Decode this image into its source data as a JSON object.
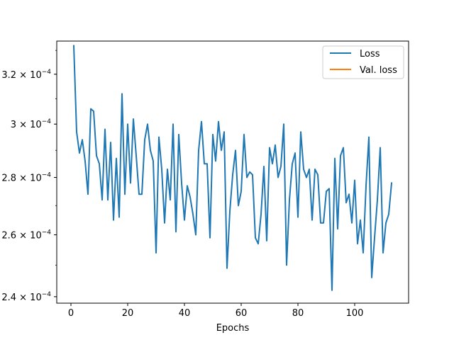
{
  "chart_data": {
    "type": "line",
    "title": "",
    "xlabel": "Epochs",
    "ylabel": "",
    "xlim": [
      -5,
      119
    ],
    "ylim": [
      0.000238,
      0.000334
    ],
    "y_scale": "log",
    "grid": false,
    "legend_position": "top-right",
    "x_ticks": [
      0,
      20,
      40,
      60,
      80,
      100
    ],
    "x_tick_labels": [
      "0",
      "20",
      "40",
      "60",
      "80",
      "100"
    ],
    "y_ticks": [
      0.00024,
      0.00026,
      0.00028,
      0.0003,
      0.00032
    ],
    "y_tick_labels": [
      {
        "mantissa": "2.4",
        "base": "10",
        "exp": "−4"
      },
      {
        "mantissa": "2.6",
        "base": "10",
        "exp": "−4"
      },
      {
        "mantissa": "2.8",
        "base": "10",
        "exp": "−4"
      },
      {
        "mantissa": "3",
        "base": "10",
        "exp": "−4"
      },
      {
        "mantissa": "3.2",
        "base": "10",
        "exp": "−4"
      }
    ],
    "series": [
      {
        "name": "Loss",
        "color": "#1f77b4",
        "x": [
          1,
          2,
          3,
          4,
          5,
          6,
          7,
          8,
          9,
          10,
          11,
          12,
          13,
          14,
          15,
          16,
          17,
          18,
          19,
          20,
          21,
          22,
          23,
          24,
          25,
          26,
          27,
          28,
          29,
          30,
          31,
          32,
          33,
          34,
          35,
          36,
          37,
          38,
          39,
          40,
          41,
          42,
          43,
          44,
          45,
          46,
          47,
          48,
          49,
          50,
          51,
          52,
          53,
          54,
          55,
          56,
          57,
          58,
          59,
          60,
          61,
          62,
          63,
          64,
          65,
          66,
          67,
          68,
          69,
          70,
          71,
          72,
          73,
          74,
          75,
          76,
          77,
          78,
          79,
          80,
          81,
          82,
          83,
          84,
          85,
          86,
          87,
          88,
          89,
          90,
          91,
          92,
          93,
          94,
          95,
          96,
          97,
          98,
          99,
          100,
          101,
          102,
          103,
          104,
          105,
          106,
          107,
          108,
          109,
          110,
          111,
          112,
          113
        ],
        "values": [
          0.000332,
          0.000297,
          0.000289,
          0.000294,
          0.000286,
          0.000274,
          0.000306,
          0.000305,
          0.000288,
          0.000285,
          0.000272,
          0.000298,
          0.000272,
          0.000293,
          0.000265,
          0.000287,
          0.000266,
          0.000312,
          0.000274,
          0.0003,
          0.000278,
          0.000302,
          0.000288,
          0.000274,
          0.000274,
          0.000294,
          0.0003,
          0.00029,
          0.000286,
          0.000254,
          0.000295,
          0.000283,
          0.000264,
          0.000283,
          0.000272,
          0.0003,
          0.000261,
          0.000296,
          0.000278,
          0.000265,
          0.000277,
          0.000273,
          0.000267,
          0.00026,
          0.00029,
          0.000301,
          0.000285,
          0.000285,
          0.000259,
          0.000296,
          0.000286,
          0.000301,
          0.00029,
          0.000297,
          0.000249,
          0.000268,
          0.000281,
          0.00029,
          0.00027,
          0.000275,
          0.000296,
          0.00028,
          0.000282,
          0.000281,
          0.000259,
          0.000257,
          0.000267,
          0.000284,
          0.000258,
          0.000291,
          0.000285,
          0.000292,
          0.00028,
          0.000284,
          0.0003,
          0.00025,
          0.000272,
          0.000285,
          0.000289,
          0.000266,
          0.000297,
          0.000283,
          0.00028,
          0.000283,
          0.000265,
          0.000283,
          0.000281,
          0.000264,
          0.000264,
          0.000275,
          0.000276,
          0.000242,
          0.000287,
          0.000262,
          0.000288,
          0.000291,
          0.000271,
          0.000274,
          0.000264,
          0.000279,
          0.000257,
          0.000265,
          0.000254,
          0.000277,
          0.000295,
          0.000246,
          0.000259,
          0.000272,
          0.000291,
          0.000254,
          0.000264,
          0.000267,
          0.000278
        ]
      },
      {
        "name": "Val. loss",
        "color": "#ff7f0e",
        "x": [],
        "values": []
      }
    ]
  }
}
